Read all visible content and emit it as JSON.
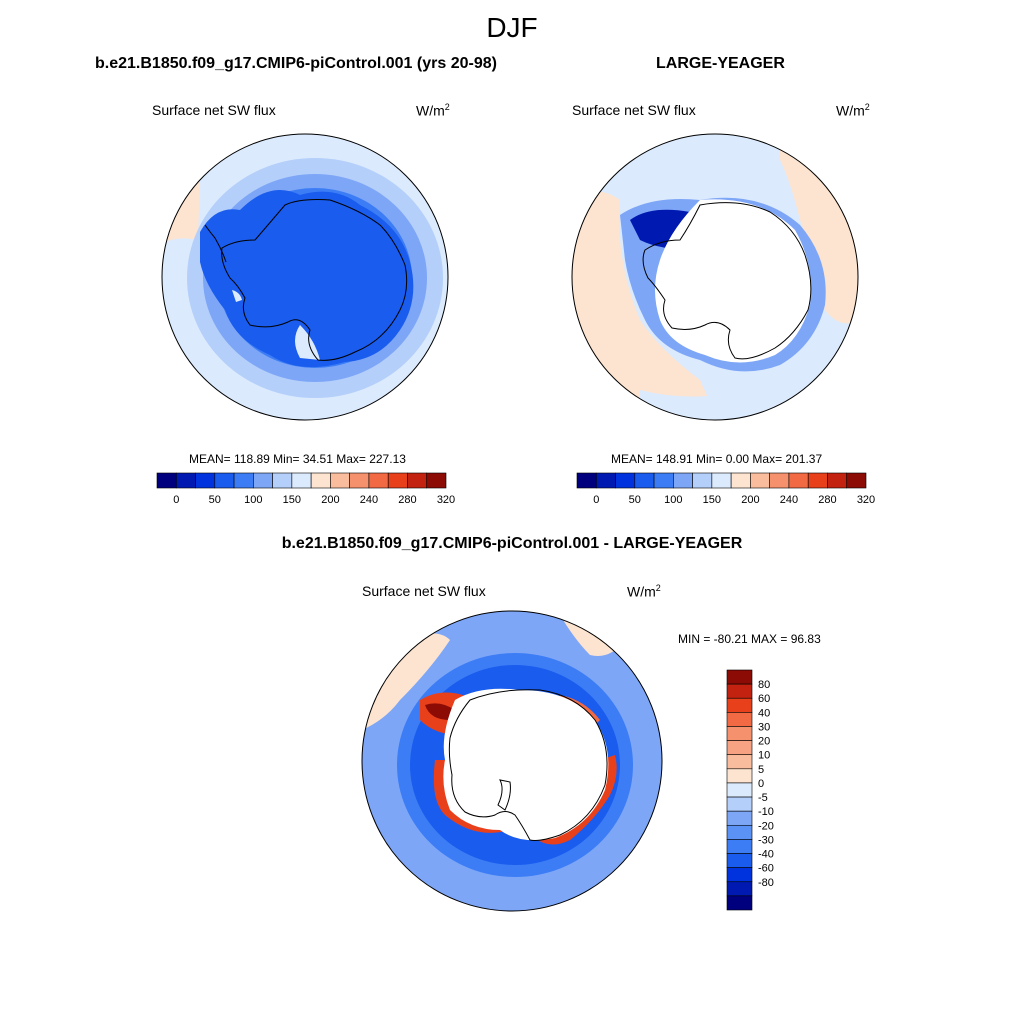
{
  "title": "DJF",
  "colors": {
    "abs_scale": [
      "#00007f",
      "#0019b0",
      "#0033dd",
      "#1a5ced",
      "#3c7df6",
      "#7ea6f7",
      "#b4cffa",
      "#dbeafd",
      "#fde4d0",
      "#f9bc9c",
      "#f5926d",
      "#f26a44",
      "#e9401c",
      "#c2220f",
      "#8c0b05"
    ],
    "diff_scale": [
      "#00007f",
      "#0019b0",
      "#0033dd",
      "#1a5ced",
      "#3c7df6",
      "#5a92f6",
      "#7ea6f7",
      "#b4cffa",
      "#dbeafd",
      "#fde4d0",
      "#f9bc9c",
      "#f7a383",
      "#f5926d",
      "#f26a44",
      "#e9401c",
      "#c2220f",
      "#8c0b05"
    ],
    "land_missing": "#ffffff"
  },
  "panels": [
    {
      "id": "case",
      "title": "b.e21.B1850.f09_g17.CMIP6-piControl.001 (yrs 20-98)",
      "variable": "Surface net SW flux",
      "units_base": "W/m",
      "units_exp": "2",
      "stats": "MEAN= 118.89  Min=  34.51  Max= 227.13",
      "colorbar_ticks": [
        "0",
        "50",
        "100",
        "150",
        "200",
        "240",
        "280",
        "320"
      ]
    },
    {
      "id": "obs",
      "title": "LARGE-YEAGER",
      "variable": "Surface net SW flux",
      "units_base": "W/m",
      "units_exp": "2",
      "stats": "MEAN= 148.91  Min=   0.00  Max= 201.37",
      "colorbar_ticks": [
        "0",
        "50",
        "100",
        "150",
        "200",
        "240",
        "280",
        "320"
      ]
    },
    {
      "id": "diff",
      "title": "b.e21.B1850.f09_g17.CMIP6-piControl.001 - LARGE-YEAGER",
      "variable": "Surface net SW flux",
      "units_base": "W/m",
      "units_exp": "2",
      "stats": "MIN = -80.21 MAX =  96.83",
      "colorbar_ticks": [
        "80",
        "60",
        "40",
        "30",
        "20",
        "10",
        "5",
        "0",
        "-5",
        "-10",
        "-20",
        "-30",
        "-40",
        "-60",
        "-80"
      ]
    }
  ]
}
